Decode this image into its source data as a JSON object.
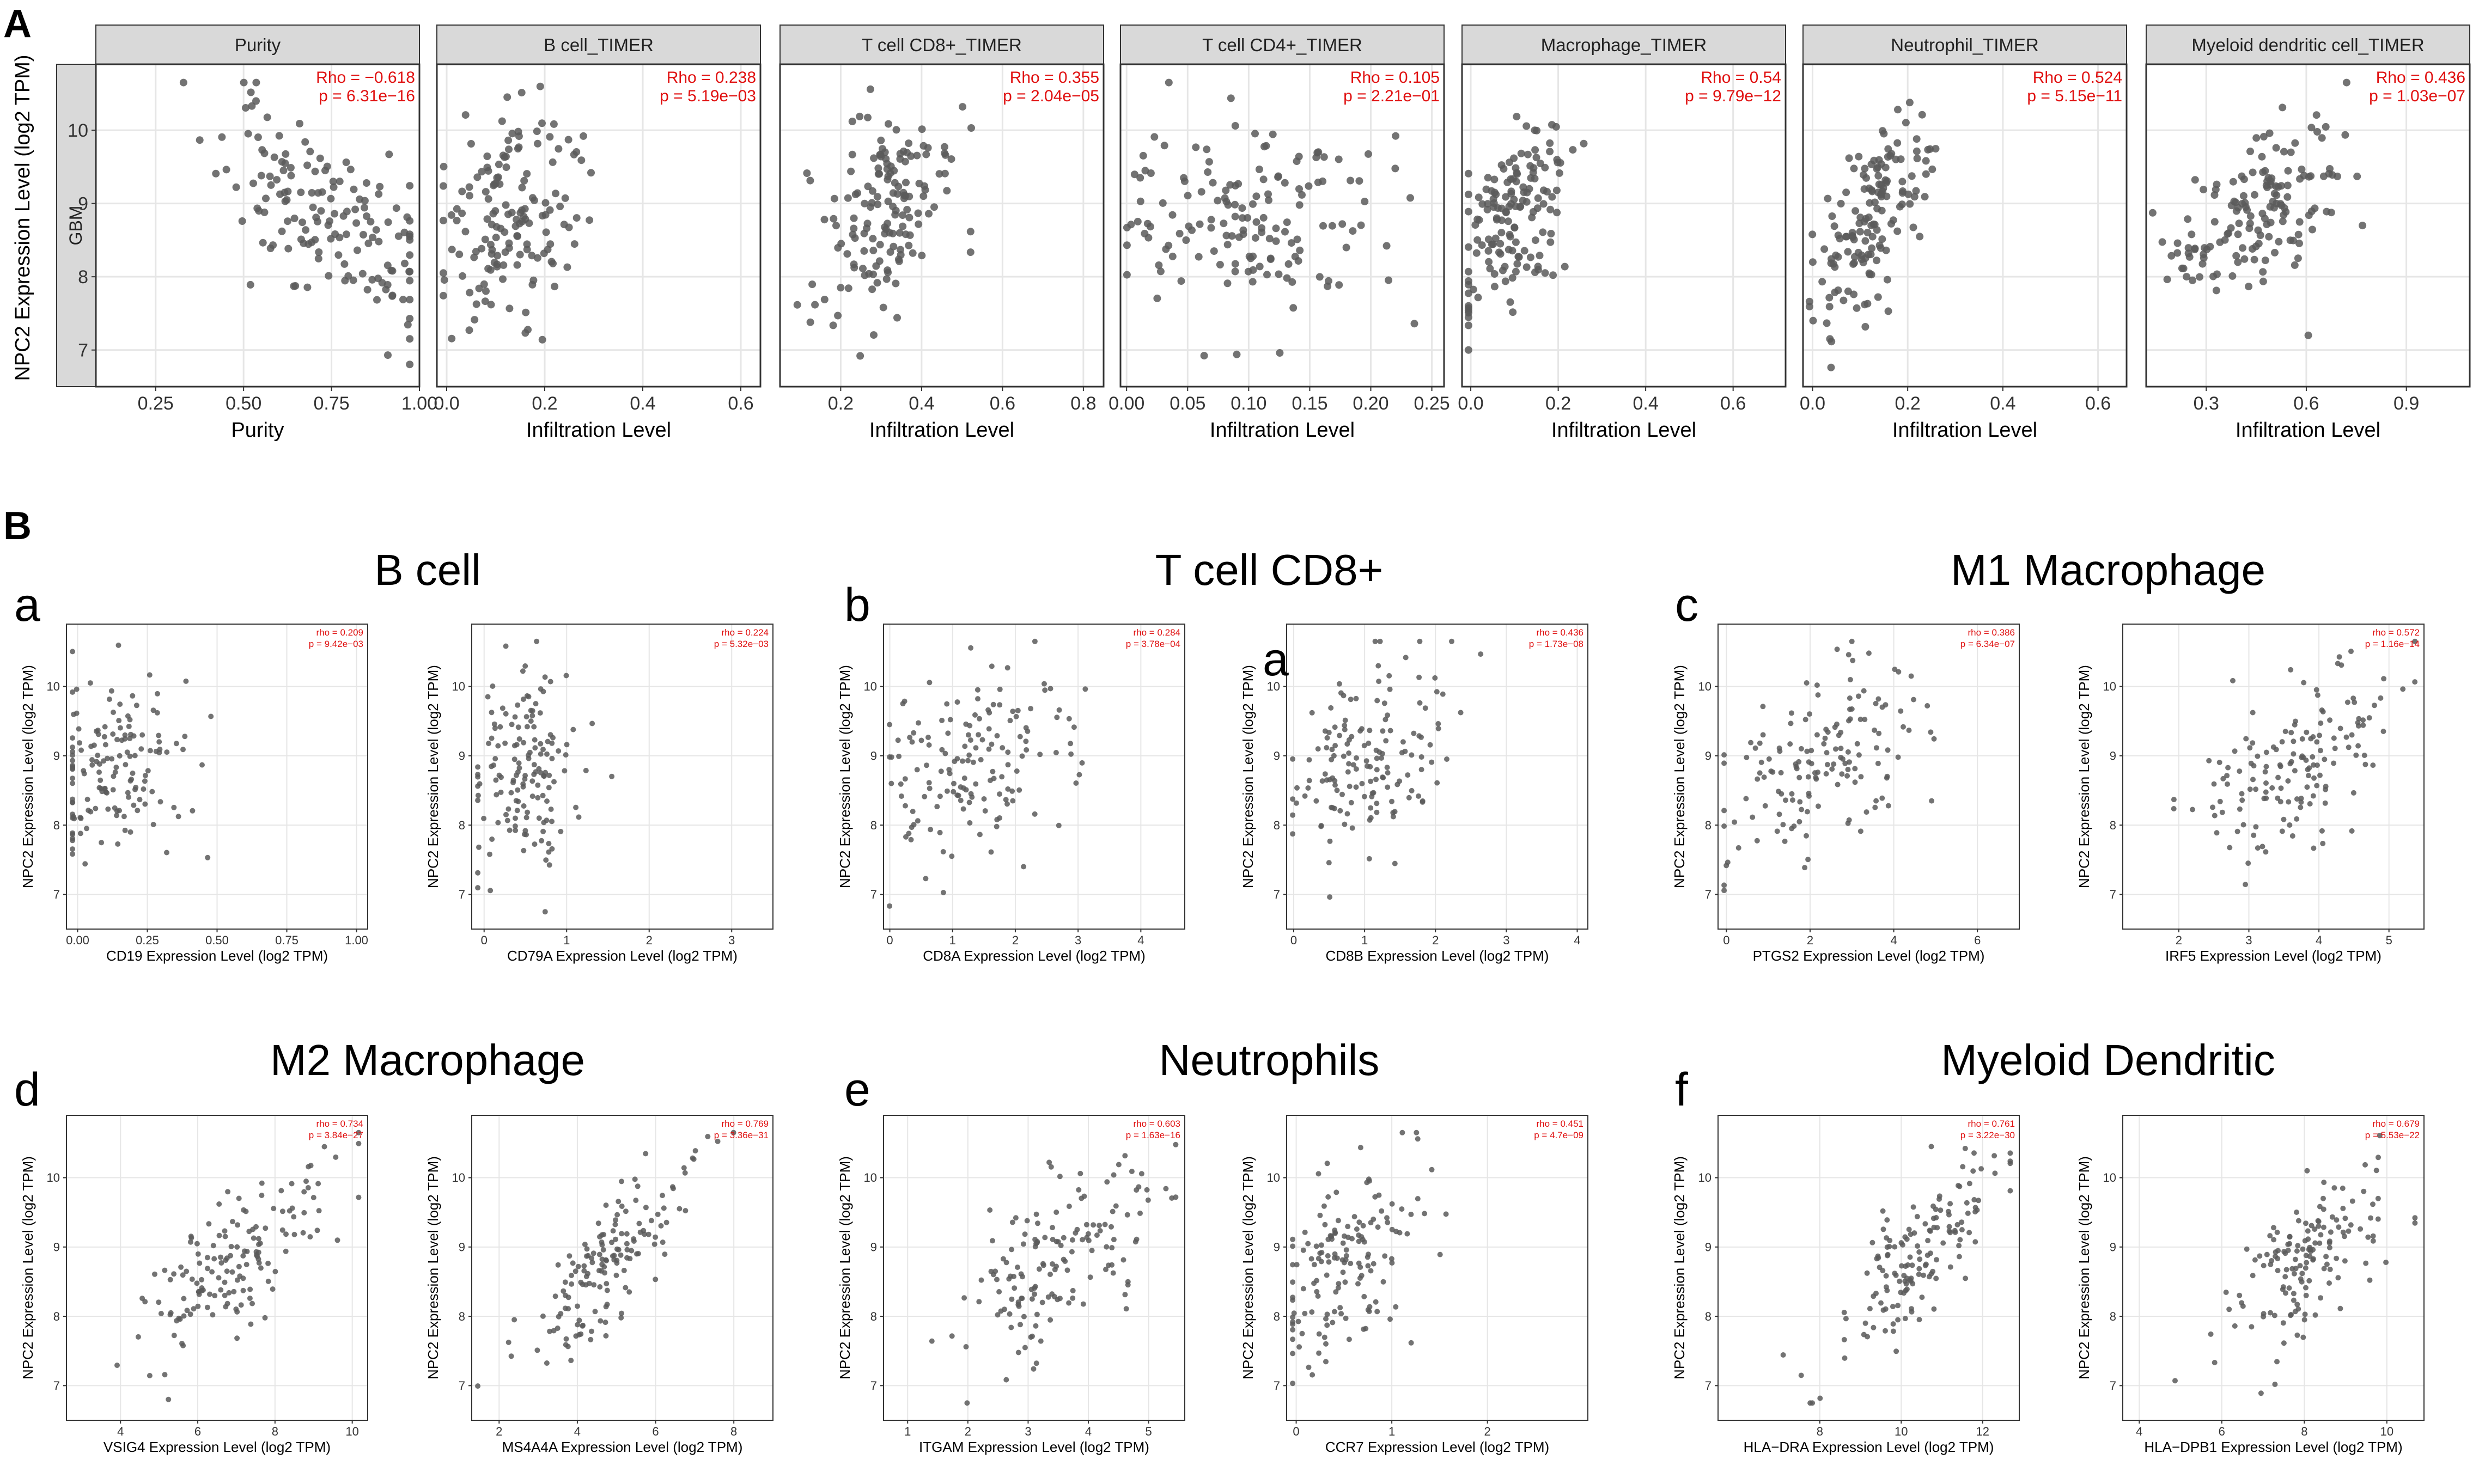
{
  "figure": {
    "label_a": "A",
    "label_b": "B",
    "row_label": "GBM",
    "a_ylabel": "NPC2 Expression Level (log2 TPM)",
    "b_ylabel": "NPC2 Expression Level (log2 TPM)",
    "colors": {
      "point": "#5a5a5a",
      "stat": "#e01010",
      "strip": "#d9d9d9",
      "grid": "#e6e6e6",
      "border": "#333333"
    }
  },
  "chart_data": [
    {
      "id": "a1",
      "type": "scatter",
      "title": "Purity",
      "xlabel": "Purity",
      "xlim": [
        0.08,
        1.0
      ],
      "xticks": [
        0.25,
        0.5,
        0.75,
        1.0
      ],
      "xtick_labels": [
        "0.25",
        "0.50",
        "0.75",
        "1.00"
      ],
      "ylim": [
        6.5,
        10.9
      ],
      "yticks": [
        7,
        8,
        9,
        10
      ],
      "ytick_labels": [
        "7",
        "8",
        "9",
        "10"
      ],
      "rho": "Rho = −0.618",
      "p": "p = 6.31e−16",
      "r": -0.618,
      "n": 150,
      "seed": 11,
      "xstats": [
        0.73,
        0.15
      ],
      "ymean": 8.85,
      "ysd": 0.7
    },
    {
      "id": "a2",
      "type": "scatter",
      "title": "B cell_TIMER",
      "xlabel": "Infiltration Level",
      "xlim": [
        -0.02,
        0.64
      ],
      "xticks": [
        0.0,
        0.2,
        0.4,
        0.6
      ],
      "xtick_labels": [
        "0.0",
        "0.2",
        "0.4",
        "0.6"
      ],
      "ylim": [
        6.5,
        10.9
      ],
      "yticks": [
        7,
        8,
        9,
        10
      ],
      "ytick_labels": [
        "7",
        "8",
        "9",
        "10"
      ],
      "rho": "Rho = 0.238",
      "p": "p = 5.19e−03",
      "r": 0.238,
      "n": 150,
      "seed": 12,
      "xstats": [
        0.13,
        0.07
      ],
      "ymean": 8.85,
      "ysd": 0.7
    },
    {
      "id": "a3",
      "type": "scatter",
      "title": "T cell CD8+_TIMER",
      "xlabel": "Infiltration Level",
      "xlim": [
        0.05,
        0.85
      ],
      "xticks": [
        0.2,
        0.4,
        0.6,
        0.8
      ],
      "xtick_labels": [
        "0.2",
        "0.4",
        "0.6",
        "0.8"
      ],
      "ylim": [
        6.5,
        10.9
      ],
      "yticks": [
        7,
        8,
        9,
        10
      ],
      "ytick_labels": [
        "7",
        "8",
        "9",
        "10"
      ],
      "rho": "Rho = 0.355",
      "p": "p = 2.04e−05",
      "r": 0.355,
      "n": 150,
      "seed": 13,
      "xstats": [
        0.29,
        0.09
      ],
      "ymean": 8.85,
      "ysd": 0.7
    },
    {
      "id": "a4",
      "type": "scatter",
      "title": "T cell CD4+_TIMER",
      "xlabel": "Infiltration Level",
      "xlim": [
        -0.005,
        0.26
      ],
      "xticks": [
        0.0,
        0.05,
        0.1,
        0.15,
        0.2,
        0.25
      ],
      "xtick_labels": [
        "0.00",
        "0.05",
        "0.10",
        "0.15",
        "0.20",
        "0.25"
      ],
      "ylim": [
        6.5,
        10.9
      ],
      "yticks": [
        7,
        8,
        9,
        10
      ],
      "ytick_labels": [
        "7",
        "8",
        "9",
        "10"
      ],
      "rho": "Rho = 0.105",
      "p": "p = 2.21e−01",
      "r": 0.105,
      "n": 150,
      "seed": 14,
      "xstats": [
        0.1,
        0.055
      ],
      "ymean": 8.85,
      "ysd": 0.7
    },
    {
      "id": "a5",
      "type": "scatter",
      "title": "Macrophage_TIMER",
      "xlabel": "Infiltration Level",
      "xlim": [
        -0.02,
        0.72
      ],
      "xticks": [
        0.0,
        0.2,
        0.4,
        0.6
      ],
      "xtick_labels": [
        "0.0",
        "0.2",
        "0.4",
        "0.6"
      ],
      "ylim": [
        6.5,
        10.9
      ],
      "yticks": [
        7,
        8,
        9,
        10
      ],
      "ytick_labels": [
        "7",
        "8",
        "9",
        "10"
      ],
      "rho": "Rho = 0.54",
      "p": "p = 9.79e−12",
      "r": 0.54,
      "n": 150,
      "seed": 15,
      "xstats": [
        0.09,
        0.07
      ],
      "ymean": 8.85,
      "ysd": 0.7
    },
    {
      "id": "a6",
      "type": "scatter",
      "title": "Neutrophil_TIMER",
      "xlabel": "Infiltration Level",
      "xlim": [
        -0.02,
        0.66
      ],
      "xticks": [
        0.0,
        0.2,
        0.4,
        0.6
      ],
      "xtick_labels": [
        "0.0",
        "0.2",
        "0.4",
        "0.6"
      ],
      "ylim": [
        6.5,
        10.9
      ],
      "yticks": [
        7,
        8,
        9,
        10
      ],
      "ytick_labels": [
        "7",
        "8",
        "9",
        "10"
      ],
      "rho": "Rho = 0.524",
      "p": "p = 5.15e−11",
      "r": 0.524,
      "n": 150,
      "seed": 16,
      "xstats": [
        0.13,
        0.06
      ],
      "ymean": 8.85,
      "ysd": 0.7
    },
    {
      "id": "a7",
      "type": "scatter",
      "title": "Myeloid dendritic cell_TIMER",
      "xlabel": "Infiltration Level",
      "xlim": [
        0.12,
        1.09
      ],
      "xticks": [
        0.3,
        0.6,
        0.9
      ],
      "xtick_labels": [
        "0.3",
        "0.6",
        "0.9"
      ],
      "ylim": [
        6.5,
        10.9
      ],
      "yticks": [
        7,
        8,
        9,
        10
      ],
      "ytick_labels": [
        "7",
        "8",
        "9",
        "10"
      ],
      "rho": "Rho = 0.436",
      "p": "p = 1.03e−07",
      "r": 0.436,
      "n": 150,
      "seed": 17,
      "xstats": [
        0.45,
        0.14
      ],
      "ymean": 8.85,
      "ysd": 0.7
    },
    {
      "id": "b1",
      "type": "scatter",
      "xlabel": "CD19 Expression Level (log2 TPM)",
      "xlim": [
        -0.04,
        1.04
      ],
      "xticks": [
        0.0,
        0.25,
        0.5,
        0.75,
        1.0
      ],
      "xtick_labels": [
        "0.00",
        "0.25",
        "0.50",
        "0.75",
        "1.00"
      ],
      "ylim": [
        6.5,
        10.9
      ],
      "yticks": [
        7,
        8,
        9,
        10
      ],
      "ytick_labels": [
        "7",
        "8",
        "9",
        "10"
      ],
      "rho": "rho = 0.209",
      "p": "p = 9.42e−03",
      "r": 0.209,
      "n": 150,
      "seed": 21,
      "xstats": [
        0.12,
        0.14
      ],
      "ymean": 8.85,
      "ysd": 0.7
    },
    {
      "id": "b2",
      "type": "scatter",
      "xlabel": "CD79A Expression Level (log2 TPM)",
      "xlim": [
        -0.15,
        3.5
      ],
      "xticks": [
        0,
        1,
        2,
        3
      ],
      "xtick_labels": [
        "0",
        "1",
        "2",
        "3"
      ],
      "ylim": [
        6.5,
        10.9
      ],
      "yticks": [
        7,
        8,
        9,
        10
      ],
      "ytick_labels": [
        "7",
        "8",
        "9",
        "10"
      ],
      "rho": "rho = 0.224",
      "p": "p = 5.32e−03",
      "r": 0.224,
      "n": 150,
      "seed": 22,
      "xstats": [
        0.45,
        0.35
      ],
      "ymean": 8.85,
      "ysd": 0.7
    },
    {
      "id": "b3",
      "type": "scatter",
      "xlabel": "CD8A Expression Level (log2 TPM)",
      "xlim": [
        -0.1,
        4.7
      ],
      "xticks": [
        0,
        1,
        2,
        3,
        4
      ],
      "xtick_labels": [
        "0",
        "1",
        "2",
        "3",
        "4"
      ],
      "ylim": [
        6.5,
        10.9
      ],
      "yticks": [
        7,
        8,
        9,
        10
      ],
      "ytick_labels": [
        "7",
        "8",
        "9",
        "10"
      ],
      "rho": "rho = 0.284",
      "p": "p = 3.78e−04",
      "r": 0.284,
      "n": 150,
      "seed": 23,
      "xstats": [
        1.3,
        0.8
      ],
      "ymean": 8.85,
      "ysd": 0.7
    },
    {
      "id": "b4",
      "type": "scatter",
      "xlabel": "CD8B Expression Level (log2 TPM)",
      "xlim": [
        -0.1,
        4.15
      ],
      "xticks": [
        0,
        1,
        2,
        3,
        4
      ],
      "xtick_labels": [
        "0",
        "1",
        "2",
        "3",
        "4"
      ],
      "ylim": [
        6.5,
        10.9
      ],
      "yticks": [
        7,
        8,
        9,
        10
      ],
      "ytick_labels": [
        "7",
        "8",
        "9",
        "10"
      ],
      "rho": "rho = 0.436",
      "p": "p = 1.73e−08",
      "r": 0.436,
      "n": 150,
      "seed": 24,
      "xstats": [
        0.9,
        0.6
      ],
      "ymean": 8.85,
      "ysd": 0.7
    },
    {
      "id": "b5",
      "type": "scatter",
      "xlabel": "PTGS2 Expression Level (log2 TPM)",
      "xlim": [
        -0.2,
        7.0
      ],
      "xticks": [
        0,
        2,
        4,
        6
      ],
      "xtick_labels": [
        "0",
        "2",
        "4",
        "6"
      ],
      "ylim": [
        6.5,
        10.9
      ],
      "yticks": [
        7,
        8,
        9,
        10
      ],
      "ytick_labels": [
        "7",
        "8",
        "9",
        "10"
      ],
      "rho": "rho = 0.386",
      "p": "p = 6.34e−07",
      "r": 0.386,
      "n": 150,
      "seed": 25,
      "xstats": [
        2.2,
        1.2
      ],
      "ymean": 8.85,
      "ysd": 0.7
    },
    {
      "id": "b6",
      "type": "scatter",
      "xlabel": "IRF5 Expression Level (log2 TPM)",
      "xlim": [
        1.2,
        5.5
      ],
      "xticks": [
        2,
        3,
        4,
        5
      ],
      "xtick_labels": [
        "2",
        "3",
        "4",
        "5"
      ],
      "ylim": [
        6.5,
        10.9
      ],
      "yticks": [
        7,
        8,
        9,
        10
      ],
      "ytick_labels": [
        "7",
        "8",
        "9",
        "10"
      ],
      "rho": "rho = 0.572",
      "p": "p = 1.16e−14",
      "r": 0.572,
      "n": 150,
      "seed": 26,
      "xstats": [
        3.7,
        0.75
      ],
      "ymean": 8.85,
      "ysd": 0.7
    },
    {
      "id": "b7",
      "type": "scatter",
      "xlabel": "VSIG4 Expression Level (log2 TPM)",
      "xlim": [
        2.6,
        10.4
      ],
      "xticks": [
        4,
        6,
        8,
        10
      ],
      "xtick_labels": [
        "4",
        "6",
        "8",
        "10"
      ],
      "ylim": [
        6.5,
        10.9
      ],
      "yticks": [
        7,
        8,
        9,
        10
      ],
      "ytick_labels": [
        "7",
        "8",
        "9",
        "10"
      ],
      "rho": "rho = 0.734",
      "p": "p = 3.84e−27",
      "r": 0.734,
      "n": 150,
      "seed": 27,
      "xstats": [
        7.2,
        1.3
      ],
      "ymean": 8.85,
      "ysd": 0.7
    },
    {
      "id": "b8",
      "type": "scatter",
      "xlabel": "MS4A4A Expression Level (log2 TPM)",
      "xlim": [
        1.3,
        9.0
      ],
      "xticks": [
        2,
        4,
        6,
        8
      ],
      "xtick_labels": [
        "2",
        "4",
        "6",
        "8"
      ],
      "ylim": [
        6.5,
        10.9
      ],
      "yticks": [
        7,
        8,
        9,
        10
      ],
      "ytick_labels": [
        "7",
        "8",
        "9",
        "10"
      ],
      "rho": "rho = 0.769",
      "p": "p = 3.36e−31",
      "r": 0.769,
      "n": 150,
      "seed": 28,
      "xstats": [
        5.0,
        1.1
      ],
      "ymean": 8.85,
      "ysd": 0.7
    },
    {
      "id": "b9",
      "type": "scatter",
      "xlabel": "ITGAM Expression Level (log2 TPM)",
      "xlim": [
        0.6,
        5.6
      ],
      "xticks": [
        1,
        2,
        3,
        4,
        5
      ],
      "xtick_labels": [
        "1",
        "2",
        "3",
        "4",
        "5"
      ],
      "ylim": [
        6.5,
        10.9
      ],
      "yticks": [
        7,
        8,
        9,
        10
      ],
      "ytick_labels": [
        "7",
        "8",
        "9",
        "10"
      ],
      "rho": "rho = 0.603",
      "p": "p = 1.63e−16",
      "r": 0.603,
      "n": 150,
      "seed": 29,
      "xstats": [
        3.5,
        0.85
      ],
      "ymean": 8.85,
      "ysd": 0.7
    },
    {
      "id": "b10",
      "type": "scatter",
      "xlabel": "CCR7 Expression Level (log2 TPM)",
      "xlim": [
        -0.1,
        3.05
      ],
      "xticks": [
        0,
        1,
        2
      ],
      "xtick_labels": [
        "0",
        "1",
        "2"
      ],
      "ylim": [
        6.5,
        10.9
      ],
      "yticks": [
        7,
        8,
        9,
        10
      ],
      "ytick_labels": [
        "7",
        "8",
        "9",
        "10"
      ],
      "rho": "rho = 0.451",
      "p": "p = 4.7e−09",
      "r": 0.451,
      "n": 150,
      "seed": 30,
      "xstats": [
        0.55,
        0.4
      ],
      "ymean": 8.85,
      "ysd": 0.7
    },
    {
      "id": "b11",
      "type": "scatter",
      "xlabel": "HLA−DRA Expression Level (log2 TPM)",
      "xlim": [
        5.5,
        12.9
      ],
      "xticks": [
        8,
        10,
        12
      ],
      "xtick_labels": [
        "8",
        "10",
        "12"
      ],
      "ylim": [
        6.5,
        10.9
      ],
      "yticks": [
        7,
        8,
        9,
        10
      ],
      "ytick_labels": [
        "7",
        "8",
        "9",
        "10"
      ],
      "rho": "rho = 0.761",
      "p": "p = 3.22e−30",
      "r": 0.761,
      "n": 150,
      "seed": 31,
      "xstats": [
        10.4,
        1.0
      ],
      "ymean": 8.85,
      "ysd": 0.7
    },
    {
      "id": "b12",
      "type": "scatter",
      "xlabel": "HLA−DPB1 Expression Level (log2 TPM)",
      "xlim": [
        3.6,
        10.9
      ],
      "xticks": [
        4,
        6,
        8,
        10
      ],
      "xtick_labels": [
        "4",
        "6",
        "8",
        "10"
      ],
      "ylim": [
        6.5,
        10.9
      ],
      "yticks": [
        7,
        8,
        9,
        10
      ],
      "ytick_labels": [
        "7",
        "8",
        "9",
        "10"
      ],
      "rho": "rho = 0.679",
      "p": "p = 5.53e−22",
      "r": 0.679,
      "n": 150,
      "seed": 32,
      "xstats": [
        8.0,
        1.0
      ],
      "ymean": 8.85,
      "ysd": 0.7
    }
  ],
  "groups": [
    {
      "letter": "a",
      "title": "B cell"
    },
    {
      "letter": "b",
      "title": "T cell CD8+"
    },
    {
      "letter": "c",
      "title": "M1 Macrophage"
    },
    {
      "letter": "d",
      "title": "M2 Macrophage"
    },
    {
      "letter": "e",
      "title": "Neutrophils"
    },
    {
      "letter": "f",
      "title": "Myeloid Dendritic"
    }
  ],
  "stray_letter": "a"
}
